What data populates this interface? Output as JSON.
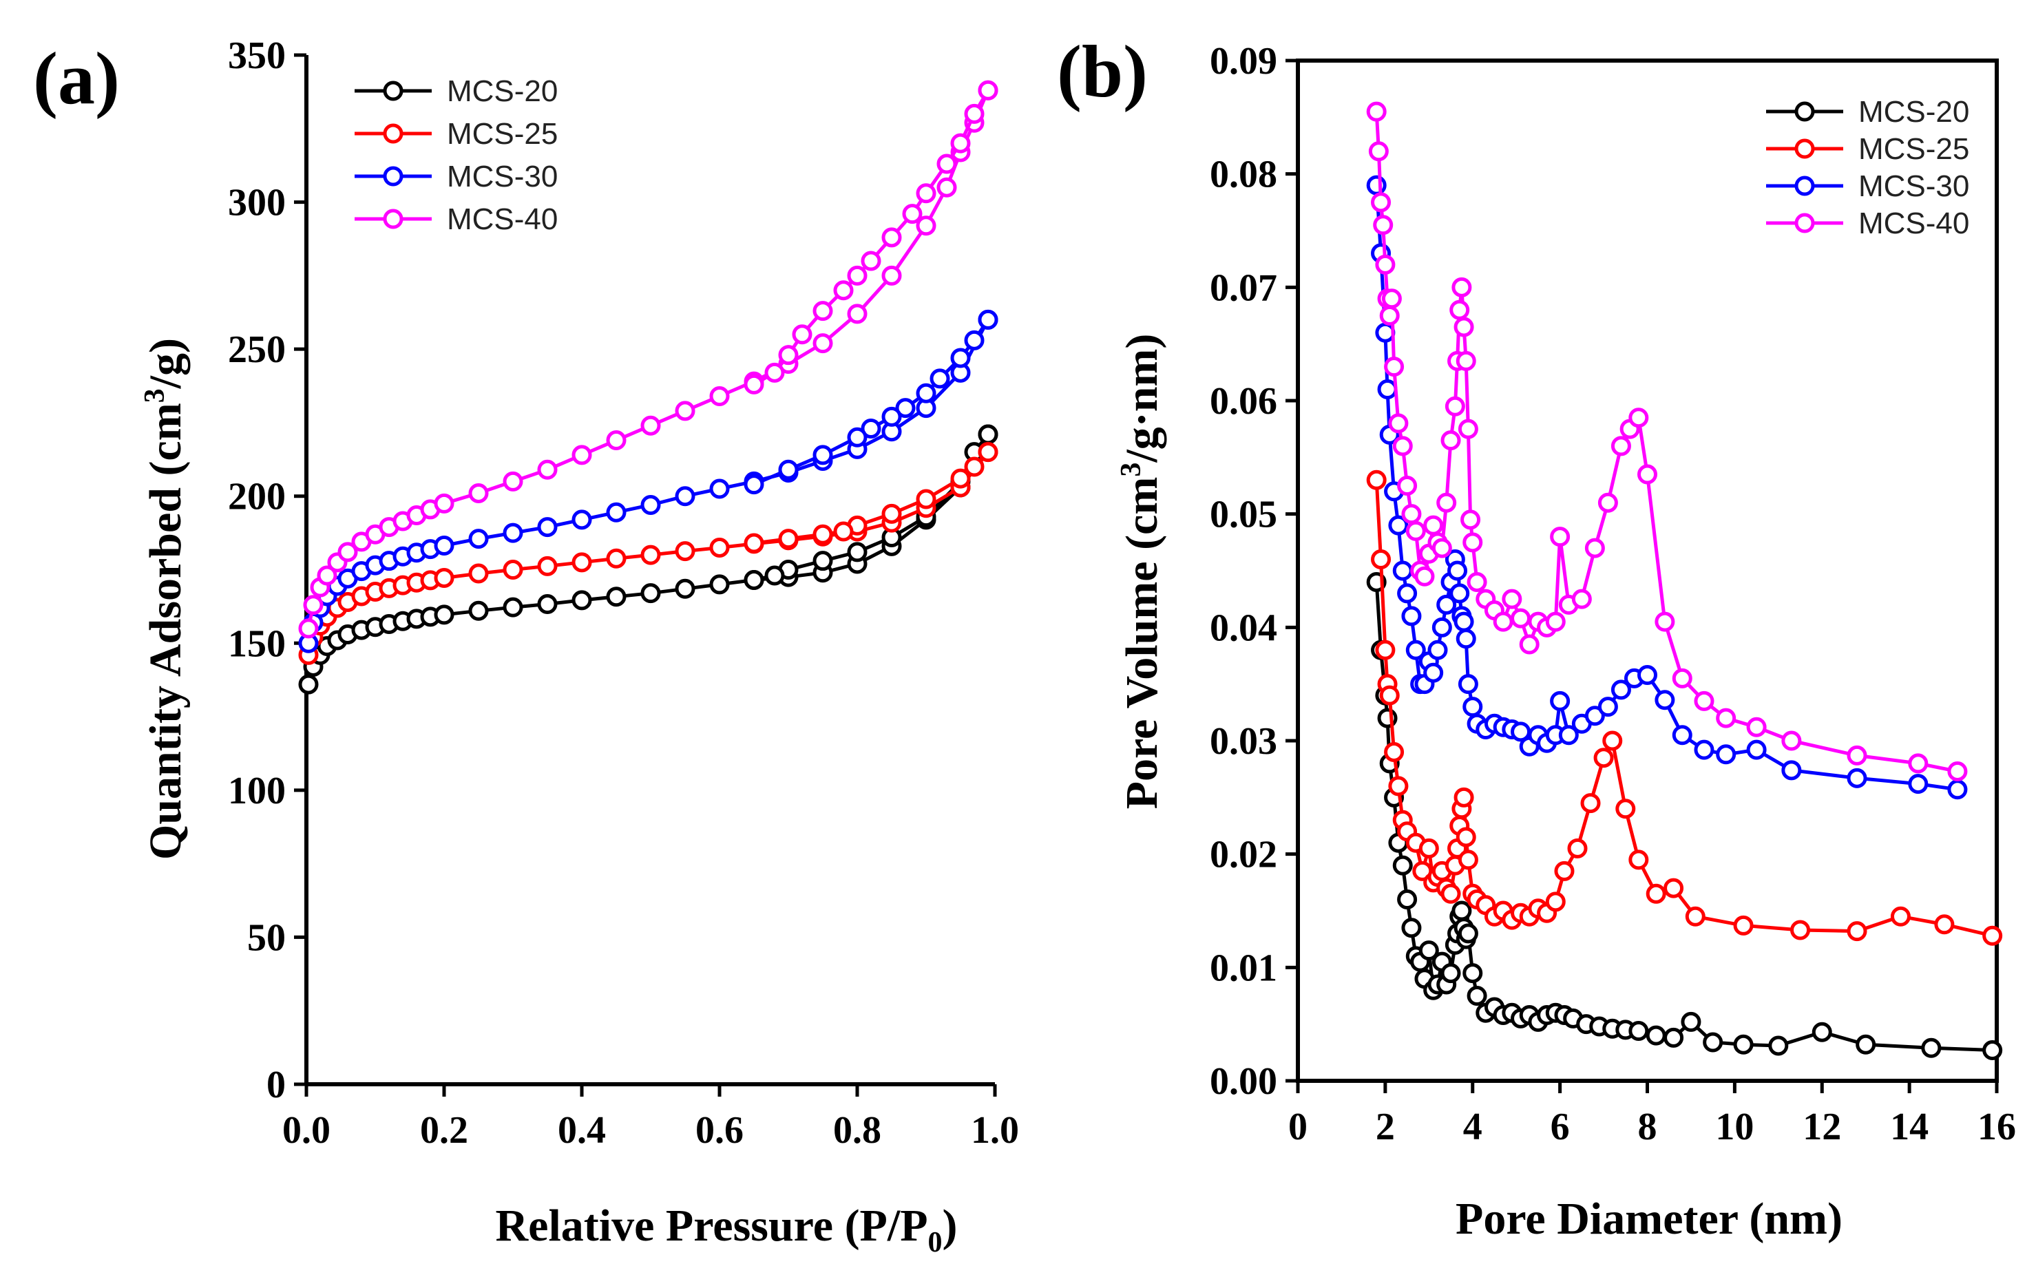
{
  "colors": {
    "MCS-20": "#000000",
    "MCS-25": "#ff0000",
    "MCS-30": "#0000ff",
    "MCS-40": "#ff00ff"
  },
  "chart_data": [
    {
      "id": "a",
      "type": "line",
      "panel_label": "(a)",
      "xlabel_main": "Relative Pressure (P/P",
      "xlabel_sub": "0",
      "xlabel_end": ")",
      "ylabel_main": "Quantity Adsorbed (cm",
      "ylabel_sup": "3",
      "ylabel_end": "/g)",
      "xlim": [
        0,
        1.0
      ],
      "ylim": [
        0,
        350
      ],
      "xticks": [
        0.0,
        0.2,
        0.4,
        0.6,
        0.8,
        1.0
      ],
      "xtick_labels": [
        "0.0",
        "0.2",
        "0.4",
        "0.6",
        "0.8",
        "1.0"
      ],
      "yticks": [
        0,
        50,
        100,
        150,
        200,
        250,
        300,
        350
      ],
      "ytick_labels": [
        "0",
        "50",
        "100",
        "150",
        "200",
        "250",
        "300",
        "350"
      ],
      "legend": [
        "MCS-20",
        "MCS-25",
        "MCS-30",
        "MCS-40"
      ],
      "legend_position": "top-left",
      "series": [
        {
          "name": "MCS-20",
          "adsorption": {
            "x": [
              0.003,
              0.01,
              0.02,
              0.03,
              0.045,
              0.06,
              0.08,
              0.1,
              0.12,
              0.14,
              0.16,
              0.18,
              0.2,
              0.25,
              0.3,
              0.35,
              0.4,
              0.45,
              0.5,
              0.55,
              0.6,
              0.65,
              0.7,
              0.75,
              0.8,
              0.85,
              0.9,
              0.95,
              0.99
            ],
            "y": [
              136,
              142,
              146,
              149,
              151,
              153,
              154.5,
              155.5,
              156.5,
              157.5,
              158.3,
              159,
              159.7,
              161,
              162.2,
              163.3,
              164.6,
              165.8,
              167,
              168.5,
              170,
              171.5,
              172.5,
              174,
              177,
              183,
              192,
              203,
              221
            ]
          },
          "desorption": {
            "x": [
              0.99,
              0.97,
              0.95,
              0.9,
              0.85,
              0.8,
              0.75,
              0.7,
              0.68,
              0.65
            ],
            "y": [
              221,
              215,
              205,
              193,
              186,
              181,
              178,
              175,
              173,
              171.5
            ]
          }
        },
        {
          "name": "MCS-25",
          "adsorption": {
            "x": [
              0.003,
              0.01,
              0.02,
              0.03,
              0.045,
              0.06,
              0.08,
              0.1,
              0.12,
              0.14,
              0.16,
              0.18,
              0.2,
              0.25,
              0.3,
              0.35,
              0.4,
              0.45,
              0.5,
              0.55,
              0.6,
              0.65,
              0.7,
              0.75,
              0.8,
              0.85,
              0.9,
              0.95,
              0.99
            ],
            "y": [
              146,
              152,
              156,
              159,
              162,
              164,
              166,
              167.5,
              168.7,
              169.7,
              170.6,
              171.4,
              172.2,
              173.7,
              175,
              176.2,
              177.5,
              178.8,
              180,
              181.3,
              182.5,
              183.8,
              185,
              186.3,
              188,
              191,
              196,
              203,
              215
            ]
          },
          "desorption": {
            "x": [
              0.99,
              0.97,
              0.95,
              0.9,
              0.85,
              0.8,
              0.78,
              0.75,
              0.7,
              0.65
            ],
            "y": [
              215,
              210,
              206,
              199,
              194,
              190,
              188,
              187,
              185.5,
              184
            ]
          }
        },
        {
          "name": "MCS-30",
          "adsorption": {
            "x": [
              0.003,
              0.01,
              0.02,
              0.03,
              0.045,
              0.06,
              0.08,
              0.1,
              0.12,
              0.14,
              0.16,
              0.18,
              0.2,
              0.25,
              0.3,
              0.35,
              0.4,
              0.45,
              0.5,
              0.55,
              0.6,
              0.65,
              0.7,
              0.75,
              0.8,
              0.85,
              0.9,
              0.95,
              0.99
            ],
            "y": [
              150,
              157,
              162,
              166,
              169.5,
              172,
              174.5,
              176.5,
              178,
              179.5,
              180.8,
              182,
              183.2,
              185.5,
              187.5,
              189.5,
              192,
              194.5,
              197,
              200,
              202.5,
              205,
              208,
              212,
              216,
              222,
              230,
              242,
              260
            ]
          },
          "desorption": {
            "x": [
              0.99,
              0.97,
              0.95,
              0.92,
              0.9,
              0.87,
              0.85,
              0.82,
              0.8,
              0.75,
              0.7,
              0.65
            ],
            "y": [
              260,
              253,
              247,
              240,
              235,
              230,
              227,
              223,
              220,
              214,
              209,
              204
            ]
          }
        },
        {
          "name": "MCS-40",
          "adsorption": {
            "x": [
              0.003,
              0.01,
              0.02,
              0.03,
              0.045,
              0.06,
              0.08,
              0.1,
              0.12,
              0.14,
              0.16,
              0.18,
              0.2,
              0.25,
              0.3,
              0.35,
              0.4,
              0.45,
              0.5,
              0.55,
              0.6,
              0.65,
              0.7,
              0.75,
              0.8,
              0.85,
              0.9,
              0.93,
              0.95,
              0.97,
              0.99
            ],
            "y": [
              155,
              163,
              169,
              173,
              177.5,
              181,
              184.5,
              187,
              189.5,
              191.5,
              193.5,
              195.5,
              197.5,
              201,
              205,
              209,
              214,
              219,
              224,
              229,
              234,
              239,
              245,
              252,
              262,
              275,
              292,
              305,
              317,
              327,
              338
            ]
          },
          "desorption": {
            "x": [
              0.99,
              0.97,
              0.95,
              0.93,
              0.9,
              0.88,
              0.85,
              0.82,
              0.8,
              0.78,
              0.75,
              0.72,
              0.7,
              0.68,
              0.65
            ],
            "y": [
              338,
              330,
              320,
              313,
              303,
              296,
              288,
              280,
              275,
              270,
              263,
              255,
              248,
              242,
              238
            ]
          }
        }
      ]
    },
    {
      "id": "b",
      "type": "line",
      "panel_label": "(b)",
      "xlabel": "Pore Diameter (nm)",
      "ylabel_main": "Pore Volume (cm",
      "ylabel_sup": "3",
      "ylabel_end": "/g·nm)",
      "xlim": [
        0,
        16
      ],
      "ylim": [
        0,
        0.09
      ],
      "xticks": [
        0,
        2,
        4,
        6,
        8,
        10,
        12,
        14,
        16
      ],
      "xtick_labels": [
        "0",
        "2",
        "4",
        "6",
        "8",
        "10",
        "12",
        "14",
        "16"
      ],
      "yticks": [
        0,
        0.01,
        0.02,
        0.03,
        0.04,
        0.05,
        0.06,
        0.07,
        0.08,
        0.09
      ],
      "ytick_labels": [
        "0.00",
        "0.01",
        "0.02",
        "0.03",
        "0.04",
        "0.05",
        "0.06",
        "0.07",
        "0.08",
        "0.09"
      ],
      "legend": [
        "MCS-20",
        "MCS-25",
        "MCS-30",
        "MCS-40"
      ],
      "legend_position": "top-right",
      "series": [
        {
          "name": "MCS-20",
          "x": [
            1.8,
            1.9,
            2.0,
            2.05,
            2.1,
            2.2,
            2.3,
            2.4,
            2.5,
            2.6,
            2.7,
            2.8,
            2.9,
            3.0,
            3.1,
            3.2,
            3.3,
            3.4,
            3.5,
            3.6,
            3.65,
            3.7,
            3.75,
            3.8,
            3.85,
            3.9,
            4.0,
            4.1,
            4.3,
            4.5,
            4.7,
            4.9,
            5.1,
            5.3,
            5.5,
            5.7,
            5.9,
            6.1,
            6.3,
            6.6,
            6.9,
            7.2,
            7.5,
            7.8,
            8.2,
            8.6,
            9.0,
            9.5,
            10.2,
            11.0,
            12.0,
            13.0,
            14.5,
            15.9
          ],
          "y": [
            0.044,
            0.038,
            0.034,
            0.032,
            0.028,
            0.025,
            0.021,
            0.019,
            0.016,
            0.0135,
            0.011,
            0.0105,
            0.009,
            0.0115,
            0.008,
            0.0085,
            0.0105,
            0.0085,
            0.0095,
            0.012,
            0.013,
            0.0145,
            0.015,
            0.0135,
            0.0125,
            0.013,
            0.0095,
            0.0075,
            0.006,
            0.0065,
            0.0058,
            0.006,
            0.0055,
            0.0058,
            0.0052,
            0.0058,
            0.006,
            0.0058,
            0.0055,
            0.005,
            0.0048,
            0.0046,
            0.0045,
            0.0044,
            0.004,
            0.0038,
            0.0052,
            0.0034,
            0.0032,
            0.0031,
            0.0043,
            0.0032,
            0.0029,
            0.0027
          ]
        },
        {
          "name": "MCS-25",
          "x": [
            1.8,
            1.9,
            2.0,
            2.05,
            2.1,
            2.2,
            2.3,
            2.4,
            2.5,
            2.7,
            2.85,
            3.0,
            3.1,
            3.2,
            3.3,
            3.4,
            3.5,
            3.6,
            3.65,
            3.7,
            3.75,
            3.8,
            3.85,
            3.9,
            4.0,
            4.1,
            4.3,
            4.5,
            4.7,
            4.9,
            5.1,
            5.3,
            5.5,
            5.7,
            5.9,
            6.1,
            6.4,
            6.7,
            7.0,
            7.2,
            7.5,
            7.8,
            8.2,
            8.6,
            9.1,
            10.2,
            11.5,
            12.8,
            13.8,
            14.8,
            15.9
          ],
          "y": [
            0.053,
            0.046,
            0.038,
            0.035,
            0.034,
            0.029,
            0.026,
            0.023,
            0.022,
            0.021,
            0.0185,
            0.0205,
            0.0175,
            0.018,
            0.0185,
            0.017,
            0.0165,
            0.019,
            0.0205,
            0.0225,
            0.024,
            0.025,
            0.0215,
            0.0195,
            0.0165,
            0.016,
            0.0155,
            0.0145,
            0.015,
            0.0142,
            0.0148,
            0.0145,
            0.0152,
            0.0148,
            0.0158,
            0.0185,
            0.0205,
            0.0245,
            0.0285,
            0.03,
            0.024,
            0.0195,
            0.0165,
            0.017,
            0.0145,
            0.0137,
            0.0133,
            0.0132,
            0.0145,
            0.0138,
            0.0128
          ]
        },
        {
          "name": "MCS-30",
          "x": [
            1.8,
            1.9,
            2.0,
            2.05,
            2.1,
            2.2,
            2.3,
            2.4,
            2.5,
            2.6,
            2.7,
            2.8,
            2.9,
            3.0,
            3.1,
            3.2,
            3.3,
            3.4,
            3.5,
            3.6,
            3.65,
            3.7,
            3.75,
            3.8,
            3.85,
            3.9,
            4.0,
            4.1,
            4.3,
            4.5,
            4.7,
            4.9,
            5.1,
            5.3,
            5.5,
            5.7,
            5.9,
            6.0,
            6.2,
            6.5,
            6.8,
            7.1,
            7.4,
            7.7,
            8.0,
            8.4,
            8.8,
            9.3,
            9.8,
            10.5,
            11.3,
            12.8,
            14.2,
            15.1
          ],
          "y": [
            0.079,
            0.073,
            0.066,
            0.061,
            0.057,
            0.052,
            0.049,
            0.045,
            0.043,
            0.041,
            0.038,
            0.035,
            0.035,
            0.037,
            0.036,
            0.038,
            0.04,
            0.042,
            0.044,
            0.046,
            0.045,
            0.043,
            0.041,
            0.0405,
            0.039,
            0.035,
            0.033,
            0.0315,
            0.031,
            0.0315,
            0.0312,
            0.031,
            0.0308,
            0.0295,
            0.0305,
            0.0298,
            0.0305,
            0.0335,
            0.0305,
            0.0315,
            0.0322,
            0.033,
            0.0345,
            0.0355,
            0.0358,
            0.0336,
            0.0305,
            0.0292,
            0.0288,
            0.0292,
            0.0274,
            0.0267,
            0.0262,
            0.0257
          ]
        },
        {
          "name": "MCS-40",
          "x": [
            1.8,
            1.85,
            1.9,
            1.95,
            2.0,
            2.05,
            2.1,
            2.15,
            2.2,
            2.3,
            2.4,
            2.5,
            2.6,
            2.7,
            2.8,
            2.9,
            3.0,
            3.1,
            3.2,
            3.3,
            3.4,
            3.5,
            3.6,
            3.65,
            3.7,
            3.75,
            3.8,
            3.85,
            3.9,
            3.95,
            4.0,
            4.1,
            4.3,
            4.5,
            4.7,
            4.9,
            5.1,
            5.3,
            5.5,
            5.7,
            5.9,
            6.0,
            6.2,
            6.5,
            6.8,
            7.1,
            7.4,
            7.6,
            7.8,
            8.0,
            8.4,
            8.8,
            9.3,
            9.8,
            10.5,
            11.3,
            12.8,
            14.2,
            15.1
          ],
          "y": [
            0.0855,
            0.082,
            0.0775,
            0.0755,
            0.072,
            0.069,
            0.0675,
            0.069,
            0.063,
            0.058,
            0.056,
            0.0525,
            0.05,
            0.0485,
            0.045,
            0.0445,
            0.0465,
            0.049,
            0.0475,
            0.047,
            0.051,
            0.0565,
            0.0595,
            0.0635,
            0.068,
            0.07,
            0.0665,
            0.0635,
            0.0575,
            0.0495,
            0.0475,
            0.044,
            0.0425,
            0.0415,
            0.0405,
            0.0425,
            0.0408,
            0.0385,
            0.0405,
            0.04,
            0.0405,
            0.048,
            0.042,
            0.0425,
            0.047,
            0.051,
            0.056,
            0.0575,
            0.0585,
            0.0535,
            0.0405,
            0.0355,
            0.0335,
            0.032,
            0.0312,
            0.03,
            0.0287,
            0.028,
            0.0273
          ]
        }
      ]
    }
  ]
}
